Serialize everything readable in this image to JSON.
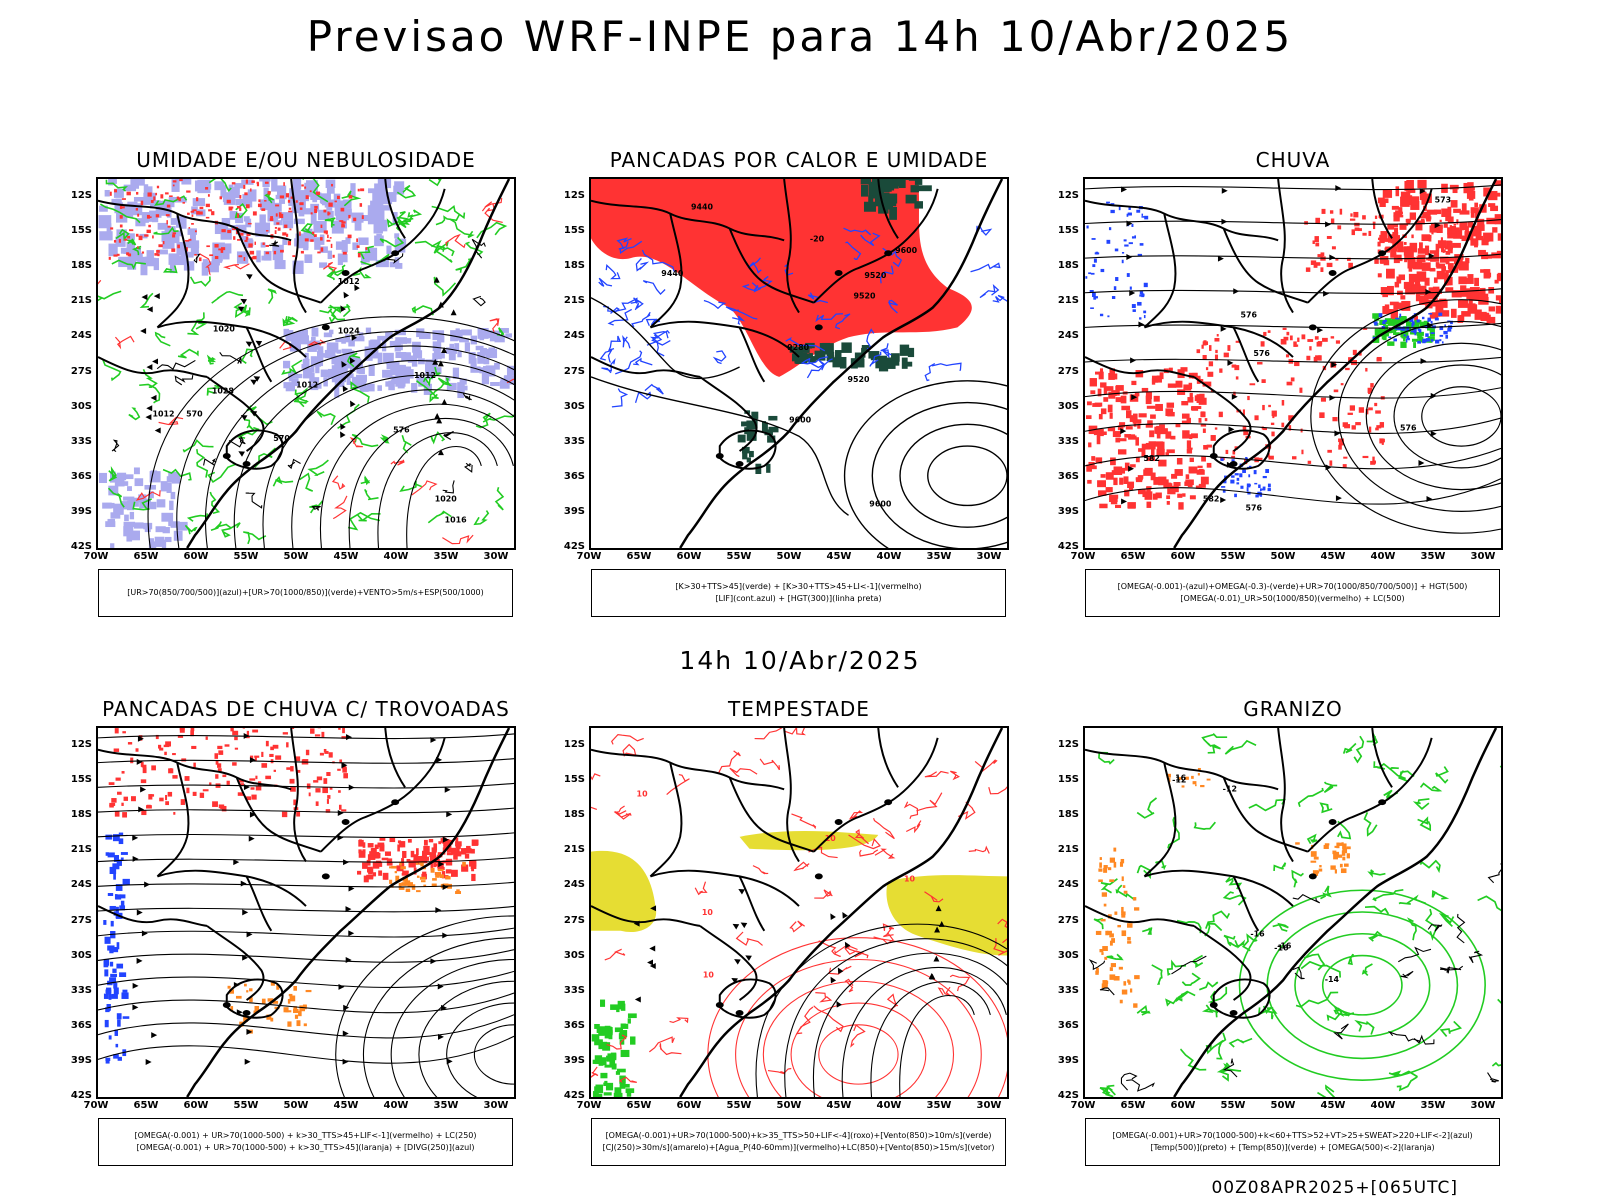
{
  "title": "Previsao WRF-INPE  para 14h 10/Abr/2025",
  "mid_title": "14h 10/Abr/2025",
  "footer": "00Z08APR2025+[065UTC]",
  "axes": {
    "lat_ticks": [
      "12S",
      "15S",
      "18S",
      "21S",
      "24S",
      "27S",
      "30S",
      "33S",
      "36S",
      "39S",
      "42S"
    ],
    "lon_ticks": [
      "70W",
      "65W",
      "60W",
      "55W",
      "50W",
      "45W",
      "40W",
      "35W",
      "30W"
    ]
  },
  "colors": {
    "green": "#22cc22",
    "red": "#ff3333",
    "blue": "#2244ff",
    "purple": "#aaaaee",
    "darkgreen": "#1a4a3a",
    "yellow": "#e6dd33",
    "orange": "#ff8822",
    "black": "#000000"
  },
  "panels": [
    {
      "title": "UMIDADE E/OU NEBULOSIDADE",
      "legend": [
        "[UR>70(850/700/500)](azul)+[UR>70(1000/850)](verde)+VENTO>5m/s+ESP(500/1000)"
      ],
      "contour_labels": [
        "1012",
        "1012",
        "1012",
        "1012",
        "1016",
        "1020",
        "1020",
        "1024",
        "1028",
        "570",
        "570",
        "576"
      ]
    },
    {
      "title": "PANCADAS POR CALOR E UMIDADE",
      "legend": [
        "[K>30+TTS>45](verde) + [K>30+TTS>45+LI<-1](vermelho)",
        "[LIF](cont.azul) + [HGT(300)](linha preta)"
      ],
      "contour_labels": [
        "9600",
        "9600",
        "9600",
        "9520",
        "9520",
        "9520",
        "9440",
        "9440",
        "9280",
        "-20"
      ]
    },
    {
      "title": "CHUVA",
      "legend": [
        "[OMEGA(-0.001)-(azul)+OMEGA(-0.3)-(verde)+UR>70(1000/850/700/500)] + HGT(500)",
        "[OMEGA(-0.01)_UR>50(1000/850)(vermelho) + LC(500)"
      ],
      "contour_labels": [
        "582",
        "576",
        "576",
        "576",
        "576",
        "573",
        "582"
      ]
    },
    {
      "title": "PANCADAS DE CHUVA C/ TROVOADAS",
      "legend": [
        "[OMEGA(-0.001) + UR>70(1000-500) + k>30_TTS>45+LIF<-1](vermelho) + LC(250)",
        "[OMEGA(-0.001) + UR>70(1000-500) + k>30_TTS>45](laranja) + [DIVG(250)](azul)"
      ],
      "contour_labels": []
    },
    {
      "title": "TEMPESTADE",
      "legend": [
        "[OMEGA(-0.001)+UR>70(1000-500)+k>35_TTS>50+LIF<-4](roxo)+[Vento(850)>10m/s](verde)",
        "[CJ(250)>30m/s](amarelo)+[Agua_P(40-60mm)](vermelho)+LC(850)+[Vento(850)>15m/s](vetor)"
      ],
      "contour_labels": [
        "10",
        "10",
        "10",
        "10",
        "10"
      ]
    },
    {
      "title": "GRANIZO",
      "legend": [
        "[OMEGA(-0.001)+UR>70(1000-500)+k<60+TTS>52+VT>25+SWEAT>220+LIF<-2](azul)",
        "[Temp(500)](preto) + [Temp(850)](verde) + [OMEGA(500)<-2](laranja)"
      ],
      "contour_labels": [
        "-12",
        "-16",
        "-16",
        "-16",
        "-14",
        "-12",
        "16"
      ]
    }
  ]
}
